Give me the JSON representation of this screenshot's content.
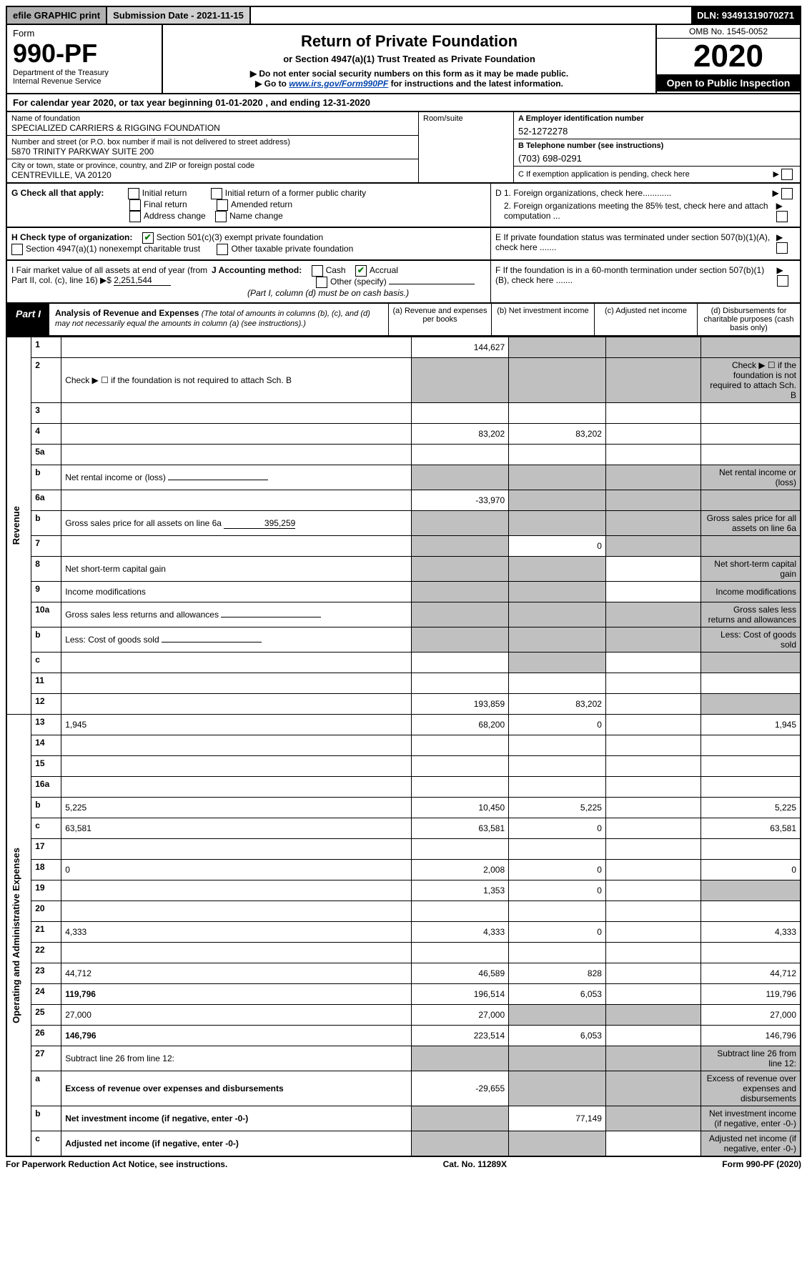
{
  "header": {
    "efile": "efile GRAPHIC print",
    "sub_date": "Submission Date - 2021-11-15",
    "dln": "DLN: 93491319070271"
  },
  "form": {
    "form_word": "Form",
    "form_no": "990-PF",
    "dept": "Department of the Treasury",
    "irs": "Internal Revenue Service",
    "title": "Return of Private Foundation",
    "subtitle": "or Section 4947(a)(1) Trust Treated as Private Foundation",
    "note1": "▶ Do not enter social security numbers on this form as it may be made public.",
    "note2_pre": "▶ Go to ",
    "note2_link": "www.irs.gov/Form990PF",
    "note2_post": " for instructions and the latest information.",
    "omb": "OMB No. 1545-0052",
    "year": "2020",
    "open": "Open to Public Inspection"
  },
  "calyear": "For calendar year 2020, or tax year beginning 01-01-2020                 , and ending 12-31-2020",
  "org": {
    "name_label": "Name of foundation",
    "name": "SPECIALIZED CARRIERS & RIGGING FOUNDATION",
    "addr_label": "Number and street (or P.O. box number if mail is not delivered to street address)",
    "addr": "5870 TRINITY PARKWAY SUITE 200",
    "city_label": "City or town, state or province, country, and ZIP or foreign postal code",
    "city": "CENTREVILLE, VA  20120",
    "room_label": "Room/suite",
    "ein_label": "A Employer identification number",
    "ein": "52-1272278",
    "tel_label": "B Telephone number (see instructions)",
    "tel": "(703) 698-0291",
    "c_label": "C If exemption application is pending, check here",
    "d1": "D 1. Foreign organizations, check here............",
    "d2": "2. Foreign organizations meeting the 85% test, check here and attach computation ...",
    "e": "E If private foundation status was terminated under section 507(b)(1)(A), check here .......",
    "f": "F If the foundation is in a 60-month termination under section 507(b)(1)(B), check here .......",
    "g": "G Check all that apply:",
    "g_initial": "Initial return",
    "g_initial_former": "Initial return of a former public charity",
    "g_final": "Final return",
    "g_amended": "Amended return",
    "g_addr": "Address change",
    "g_name": "Name change",
    "h": "H Check type of organization:",
    "h_501": "Section 501(c)(3) exempt private foundation",
    "h_4947": "Section 4947(a)(1) nonexempt charitable trust",
    "h_other": "Other taxable private foundation",
    "i_label": "I Fair market value of all assets at end of year (from Part II, col. (c), line 16) ▶$",
    "i_val": "2,251,544",
    "j_label": "J Accounting method:",
    "j_cash": "Cash",
    "j_accrual": "Accrual",
    "j_other": "Other (specify)",
    "j_note": "(Part I, column (d) must be on cash basis.)"
  },
  "part1": {
    "label": "Part I",
    "title_bold": "Analysis of Revenue and Expenses",
    "title_rest": " (The total of amounts in columns (b), (c), and (d) may not necessarily equal the amounts in column (a) (see instructions).)",
    "col_a": "(a) Revenue and expenses per books",
    "col_b": "(b) Net investment income",
    "col_c": "(c) Adjusted net income",
    "col_d": "(d) Disbursements for charitable purposes (cash basis only)"
  },
  "side": {
    "revenue": "Revenue",
    "opex": "Operating and Administrative Expenses"
  },
  "rows": [
    {
      "n": "1",
      "d": "",
      "a": "144,627",
      "b": "",
      "c": "",
      "shade_bcd": true
    },
    {
      "n": "2",
      "d": "Check ▶ ☐ if the foundation is not required to attach Sch. B",
      "shade_all": true
    },
    {
      "n": "3",
      "d": "",
      "a": "",
      "b": "",
      "c": ""
    },
    {
      "n": "4",
      "d": "",
      "a": "83,202",
      "b": "83,202",
      "c": ""
    },
    {
      "n": "5a",
      "d": "",
      "a": "",
      "b": "",
      "c": ""
    },
    {
      "n": "b",
      "d": "Net rental income or (loss)",
      "shade_all": true,
      "inline": true
    },
    {
      "n": "6a",
      "d": "",
      "a": "-33,970",
      "b": "",
      "c": "",
      "shade_bcd": true
    },
    {
      "n": "b",
      "d": "Gross sales price for all assets on line 6a",
      "inline_val": "395,259",
      "shade_all": true
    },
    {
      "n": "7",
      "d": "",
      "a": "",
      "b": "0",
      "c": "",
      "shade_a": true,
      "shade_cd": true
    },
    {
      "n": "8",
      "d": "Net short-term capital gain",
      "shade_ab": true,
      "c": "",
      "shade_d": true
    },
    {
      "n": "9",
      "d": "Income modifications",
      "shade_ab": true,
      "c": "",
      "shade_d": true
    },
    {
      "n": "10a",
      "d": "Gross sales less returns and allowances",
      "shade_all": true,
      "inline": true
    },
    {
      "n": "b",
      "d": "Less: Cost of goods sold",
      "shade_all": true,
      "inline": true
    },
    {
      "n": "c",
      "d": "",
      "a": "",
      "b": "",
      "c": "",
      "shade_b": true,
      "shade_d": true
    },
    {
      "n": "11",
      "d": "",
      "a": "",
      "b": "",
      "c": ""
    },
    {
      "n": "12",
      "d": "",
      "bold": true,
      "a": "193,859",
      "b": "83,202",
      "c": "",
      "shade_d": true
    },
    {
      "n": "13",
      "d": "1,945",
      "a": "68,200",
      "b": "0",
      "c": ""
    },
    {
      "n": "14",
      "d": "",
      "a": "",
      "b": "",
      "c": ""
    },
    {
      "n": "15",
      "d": "",
      "a": "",
      "b": "",
      "c": ""
    },
    {
      "n": "16a",
      "d": "",
      "a": "",
      "b": "",
      "c": ""
    },
    {
      "n": "b",
      "d": "5,225",
      "a": "10,450",
      "b": "5,225",
      "c": ""
    },
    {
      "n": "c",
      "d": "63,581",
      "a": "63,581",
      "b": "0",
      "c": ""
    },
    {
      "n": "17",
      "d": "",
      "a": "",
      "b": "",
      "c": ""
    },
    {
      "n": "18",
      "d": "0",
      "a": "2,008",
      "b": "0",
      "c": ""
    },
    {
      "n": "19",
      "d": "",
      "a": "1,353",
      "b": "0",
      "c": "",
      "shade_d": true
    },
    {
      "n": "20",
      "d": "",
      "a": "",
      "b": "",
      "c": ""
    },
    {
      "n": "21",
      "d": "4,333",
      "a": "4,333",
      "b": "0",
      "c": ""
    },
    {
      "n": "22",
      "d": "",
      "a": "",
      "b": "",
      "c": ""
    },
    {
      "n": "23",
      "d": "44,712",
      "a": "46,589",
      "b": "828",
      "c": ""
    },
    {
      "n": "24",
      "d": "119,796",
      "bold": true,
      "a": "196,514",
      "b": "6,053",
      "c": ""
    },
    {
      "n": "25",
      "d": "27,000",
      "a": "27,000",
      "b": "",
      "c": "",
      "shade_bc": true
    },
    {
      "n": "26",
      "d": "146,796",
      "bold": true,
      "a": "223,514",
      "b": "6,053",
      "c": ""
    },
    {
      "n": "27",
      "d": "Subtract line 26 from line 12:",
      "shade_all": true
    },
    {
      "n": "a",
      "d": "Excess of revenue over expenses and disbursements",
      "bold": true,
      "a": "-29,655",
      "shade_bcd": true
    },
    {
      "n": "b",
      "d": "Net investment income (if negative, enter -0-)",
      "bold": true,
      "shade_a": true,
      "b": "77,149",
      "shade_cd": true
    },
    {
      "n": "c",
      "d": "Adjusted net income (if negative, enter -0-)",
      "bold": true,
      "shade_ab": true,
      "c": "",
      "shade_d": true
    }
  ],
  "footer": {
    "pra": "For Paperwork Reduction Act Notice, see instructions.",
    "cat": "Cat. No. 11289X",
    "form": "Form 990-PF (2020)"
  }
}
